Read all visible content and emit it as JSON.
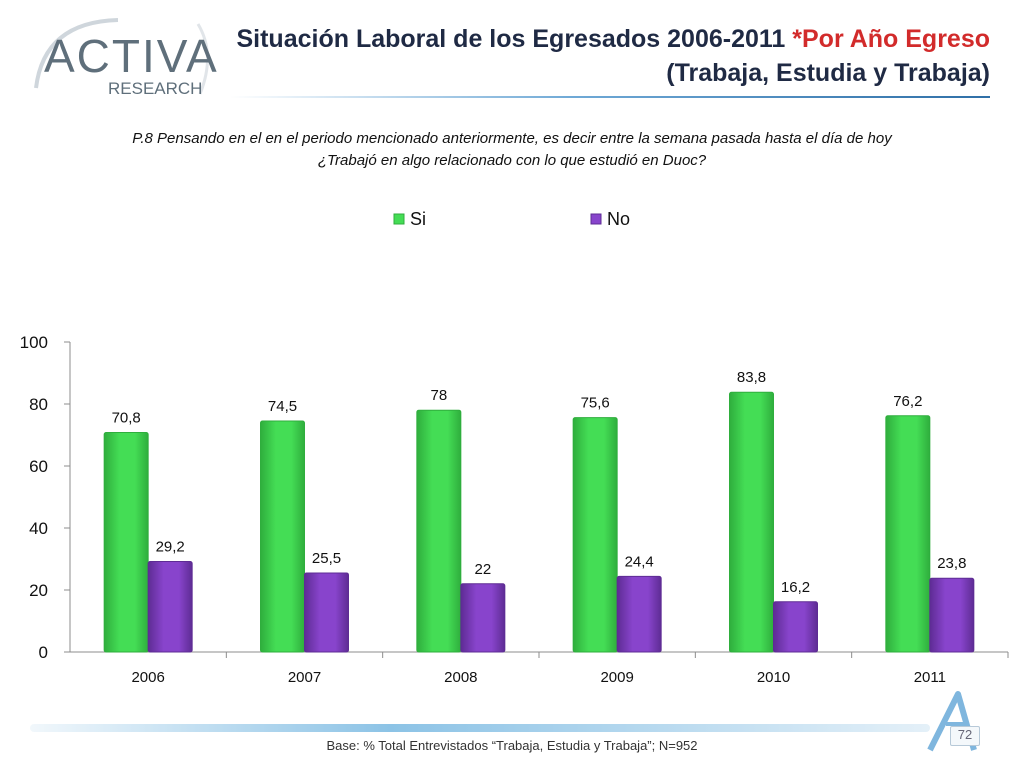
{
  "header": {
    "title_line1_main": "Situación Laboral de los Egresados 2006-2011 ",
    "title_line1_accent": "*Por Año Egreso",
    "title_line2": "(Trabaja, Estudia y Trabaja)"
  },
  "logo": {
    "name_big": "ACTIVA",
    "name_small": "RESEARCH"
  },
  "question": {
    "line1": "P.8 Pensando en el en el periodo mencionado anteriormente, es decir entre la semana pasada hasta el día de hoy",
    "line2": "¿Trabajó en algo relacionado con lo que estudió en Duoc?"
  },
  "footer": {
    "base": "Base: % Total Entrevistados “Trabaja, Estudia y Trabaja”; N=952",
    "page_number": "72"
  },
  "colors": {
    "si": "#44dd55",
    "no": "#8844cc",
    "title": "#1f2a44",
    "accent": "#d22b2b"
  },
  "chart_data": {
    "type": "bar",
    "categories": [
      "2006",
      "2007",
      "2008",
      "2009",
      "2010",
      "2011"
    ],
    "series": [
      {
        "name": "Si",
        "values": [
          70.8,
          74.5,
          78,
          75.6,
          83.8,
          76.2
        ],
        "labels": [
          "70,8",
          "74,5",
          "78",
          "75,6",
          "83,8",
          "76,2"
        ]
      },
      {
        "name": "No",
        "values": [
          29.2,
          25.5,
          22,
          24.4,
          16.2,
          23.8
        ],
        "labels": [
          "29,2",
          "25,5",
          "22",
          "24,4",
          "16,2",
          "23,8"
        ]
      }
    ],
    "ylim": [
      0,
      100
    ],
    "yticks": [
      0,
      20,
      40,
      60,
      80,
      100
    ],
    "legend_position": "top",
    "grid": false
  }
}
